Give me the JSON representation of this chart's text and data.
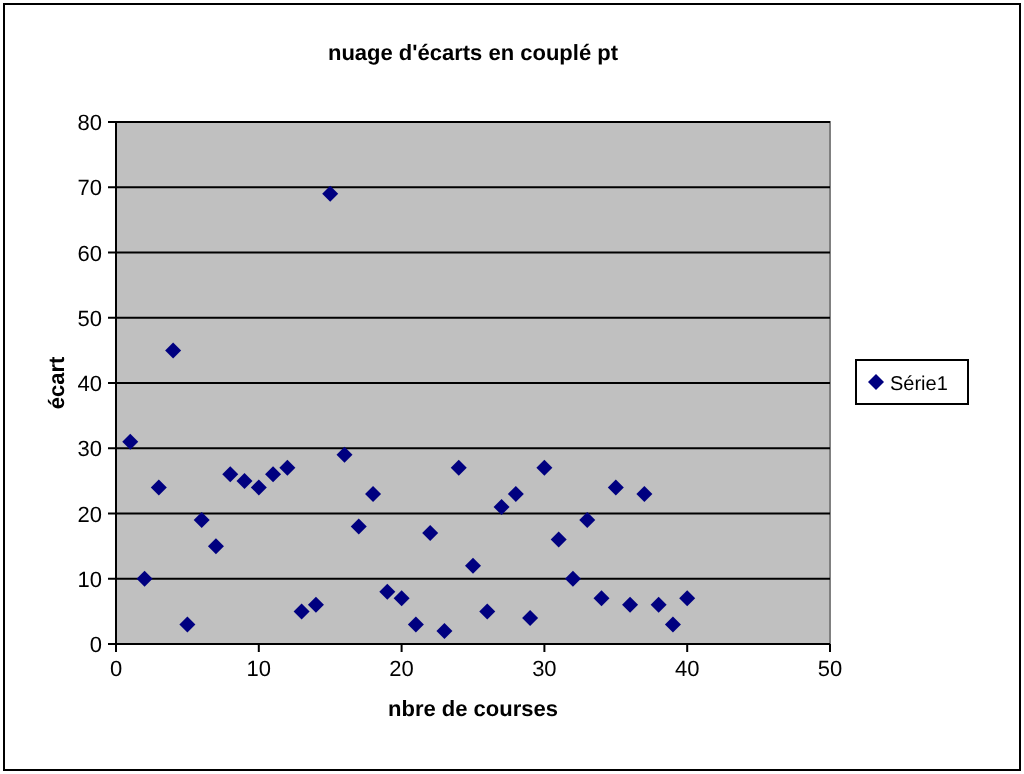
{
  "chart_data": {
    "type": "scatter",
    "title": "nuage d'écarts en couplé pt",
    "xlabel": "nbre de courses",
    "ylabel": "écart",
    "xlim": [
      0,
      50
    ],
    "xticks": [
      0,
      10,
      20,
      30,
      40,
      50
    ],
    "ylim": [
      0,
      80
    ],
    "yticks": [
      0,
      10,
      20,
      30,
      40,
      50,
      60,
      70,
      80
    ],
    "grid": "y",
    "legend": "right",
    "marker": "diamond",
    "series": [
      {
        "name": "Série1",
        "color": "#000080",
        "x": [
          1,
          2,
          3,
          4,
          5,
          6,
          7,
          8,
          9,
          10,
          11,
          12,
          13,
          14,
          15,
          16,
          17,
          18,
          19,
          20,
          21,
          22,
          23,
          24,
          25,
          26,
          27,
          28,
          29,
          30,
          31,
          32,
          33,
          34,
          35,
          36,
          37,
          38,
          39,
          40
        ],
        "values": [
          31,
          10,
          24,
          45,
          3,
          19,
          15,
          26,
          25,
          24,
          26,
          27,
          5,
          6,
          69,
          29,
          18,
          23,
          8,
          7,
          3,
          17,
          2,
          27,
          12,
          5,
          21,
          23,
          4,
          27,
          16,
          10,
          19,
          7,
          24,
          6,
          23,
          6,
          3,
          7
        ]
      }
    ]
  }
}
